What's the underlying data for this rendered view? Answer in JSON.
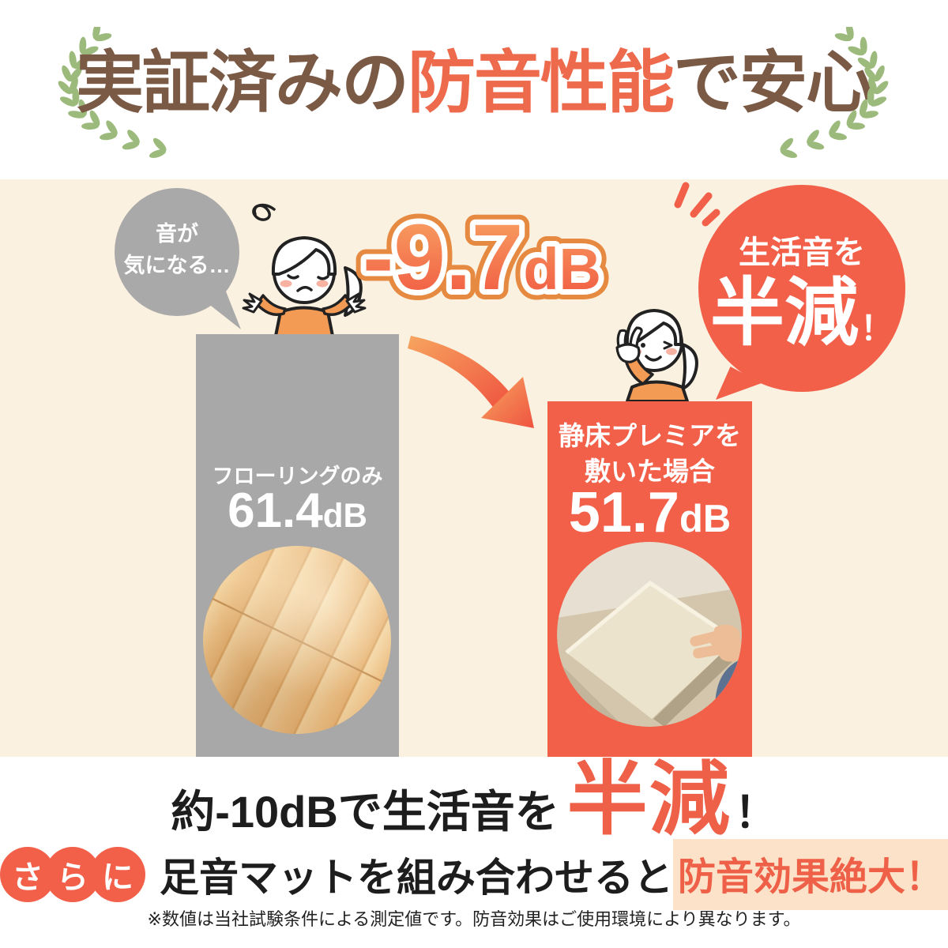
{
  "header": {
    "title_part1": "実証済みの",
    "title_accent": "防音性能",
    "title_part2": "で安心"
  },
  "scene": {
    "worry_bubble": {
      "line1": "音が",
      "line2": "気になる…"
    },
    "reduction": {
      "value": "-9.7",
      "unit": "dB"
    },
    "result_bubble": {
      "line1": "生活音を",
      "word": "半減",
      "exclaim": "！"
    },
    "bars": {
      "before": {
        "label": "フローリングのみ",
        "value": "61.4",
        "unit": "dB"
      },
      "after": {
        "label_line1": "静床プレミアを",
        "label_line2": "敷いた場合",
        "value": "51.7",
        "unit": "dB"
      }
    }
  },
  "summary": {
    "line1_black": "約-10dBで生活音を",
    "line1_accent": "半減",
    "line1_exclaim": "！",
    "badge": [
      "さ",
      "ら",
      "に"
    ],
    "line2_black": "足音マットを組み合わせると",
    "line2_accent": "防音効果絶大！"
  },
  "footnote": "※数値は当社試験条件による測定値です。防音効果はご使用環境により異なります。",
  "colors": {
    "accent": "#f2604a",
    "gray": "#a8a8a8",
    "brown": "#7a5a45",
    "laurel_green": "#9cba7c",
    "highlight": "#fbe2c9",
    "cream_background": "#fbf1e1"
  },
  "chart_data": {
    "type": "bar",
    "categories": [
      "フローリングのみ",
      "静床プレミアを敷いた場合"
    ],
    "values": [
      61.4,
      51.7
    ],
    "unit": "dB",
    "difference_label": "-9.7dB",
    "title": "実証済みの防音性能で安心",
    "bar_colors": [
      "#a8a8a8",
      "#f2604a"
    ],
    "legend_position": "none",
    "grid": false
  }
}
